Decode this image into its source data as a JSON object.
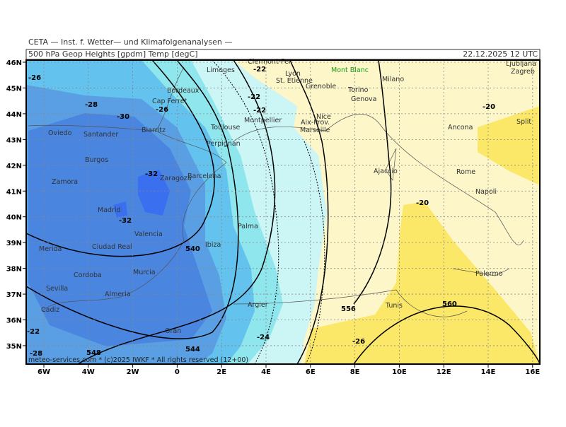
{
  "header": {
    "source": "CETA — Inst. f. Wetter— und Klimafolgenanalysen —",
    "field": "500 hPa Geop Heights [gpdm] Temp [degC]",
    "valid": "22.12.2025 12 UTC"
  },
  "axes": {
    "x_labels": [
      "6W",
      "4W",
      "2W",
      "0",
      "2E",
      "4E",
      "6E",
      "8E",
      "10E",
      "12E",
      "14E",
      "16E"
    ],
    "y_labels": [
      "46N",
      "45N",
      "44N",
      "43N",
      "42N",
      "41N",
      "40N",
      "39N",
      "38N",
      "37N",
      "36N",
      "35N"
    ]
  },
  "cities": [
    "Limoges",
    "Clermont-Fer",
    "Lyon",
    "Mont Blanc",
    "Milano",
    "Ljubljana",
    "Zagreb",
    "Bordeaux",
    "St. Etienne",
    "Grenoble",
    "Torino",
    "Genova",
    "Cap Ferret",
    "Montpellier",
    "Nice",
    "Oviedo",
    "Santander",
    "Biarritz",
    "Toulouse",
    "Aix-Prov.",
    "Marseille",
    "Ancona",
    "Split",
    "Perpignan",
    "Burgos",
    "Ajaccio",
    "Zaragoza",
    "Barcelona",
    "Rome",
    "Zamora",
    "Napoli",
    "Madrid",
    "Valencia",
    "Palma",
    "Merida",
    "Ciudad Real",
    "Ibiza",
    "Cordoba",
    "Murcia",
    "Palermo",
    "Sevilla",
    "Almeria",
    "Argier",
    "Tunis",
    "Cadiz",
    "Oran"
  ],
  "contour_labels": [
    "-26",
    "-28",
    "-30",
    "-26",
    "-22",
    "-22",
    "-22",
    "-32",
    "-32",
    "-20",
    "-20",
    "540",
    "556",
    "560",
    "-24",
    "-26",
    "544",
    "548",
    "-22",
    "-28"
  ],
  "footer": "meteo-services.com * (c)2025 IWKF * All rights reserved (12+00)"
}
